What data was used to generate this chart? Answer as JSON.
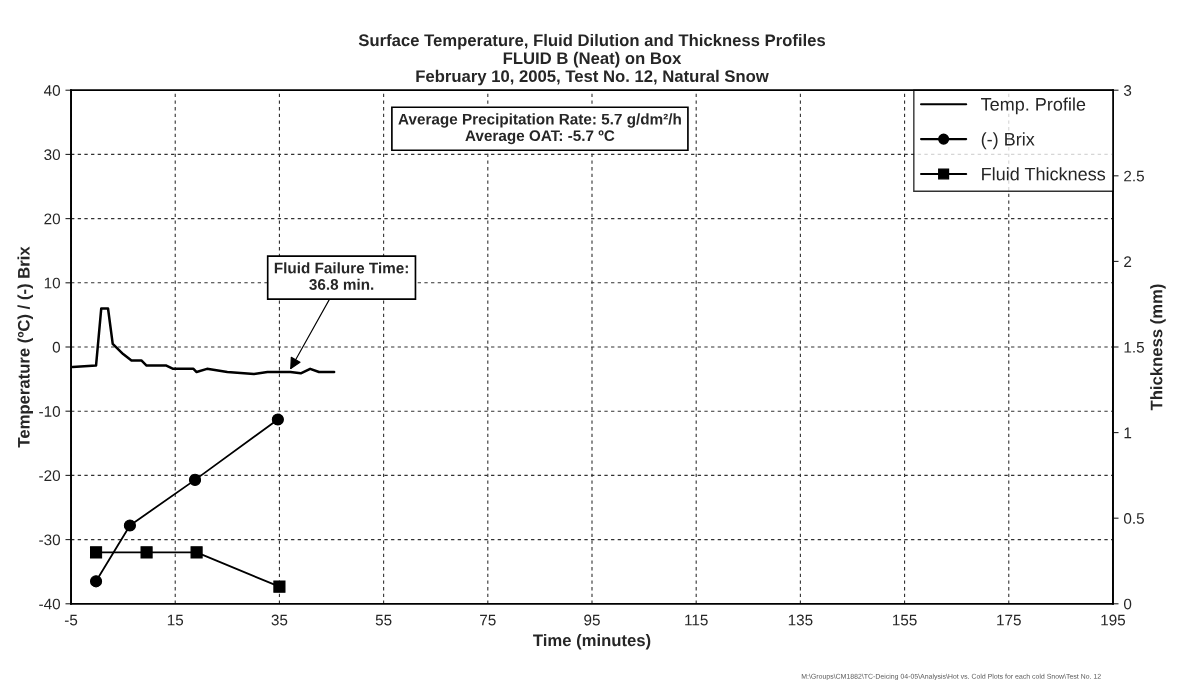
{
  "chart_data": {
    "type": "line",
    "title": "Surface Temperature, Fluid Dilution and Thickness Profiles\nFLUID B (Neat) on Box\nFebruary 10, 2005, Test No. 12, Natural Snow",
    "xlabel": "Time (minutes)",
    "ylabel": "Temperature (ºC) / (-) Brix",
    "y2label": "Thickness (mm)",
    "xlim": [
      -5,
      195
    ],
    "xticks": [
      -5,
      15,
      35,
      55,
      75,
      95,
      115,
      135,
      155,
      175,
      195
    ],
    "ylim": [
      -40,
      40
    ],
    "yticks": [
      -40,
      -30,
      -20,
      -10,
      0,
      10,
      20,
      30,
      40
    ],
    "y2lim": [
      0,
      3
    ],
    "y2ticks": [
      0,
      0.5,
      1,
      1.5,
      2,
      2.5,
      3
    ],
    "grid": true,
    "legend": "top right",
    "series": [
      {
        "name": "Temp. Profile",
        "color": "#000000",
        "marker": "none",
        "x": [
          -4.7,
          -0.2,
          0.8,
          2.1,
          3.0,
          5.0,
          6.6,
          8.5,
          9.5,
          13.3,
          14.6,
          18.5,
          19.1,
          21.1,
          25.0,
          30.1,
          32.7,
          37.1,
          39.1,
          40.9,
          42.6,
          45.5
        ],
        "values": [
          -3.1,
          -2.9,
          6.0,
          6.0,
          0.5,
          -1.1,
          -2.1,
          -2.1,
          -2.9,
          -2.9,
          -3.4,
          -3.4,
          -3.9,
          -3.4,
          -3.9,
          -4.2,
          -3.9,
          -3.9,
          -4.1,
          -3.4,
          -3.9,
          -3.9
        ]
      },
      {
        "name": "(-) Brix",
        "color": "#000000",
        "marker": "circle",
        "x": [
          -0.2,
          6.3,
          18.8,
          34.7
        ],
        "values": [
          -36.5,
          -27.8,
          -20.7,
          -11.3
        ]
      },
      {
        "name": "Fluid Thickness",
        "color": "#000000",
        "marker": "square",
        "axis": "y2",
        "x": [
          -0.2,
          9.5,
          19.1,
          35
        ],
        "values": [
          0.3,
          0.3,
          0.3,
          0.1
        ]
      }
    ],
    "annotations": [
      "Average Precipitation Rate: 5.7 g/dm²/h\nAverage OAT: -5.7 ºC",
      {
        "text": "Fluid Failure Time:\n36.8 min.",
        "x": 36.8,
        "y": -3.9
      },
      "M:\\Groups\\CM1882\\TC-Deicing 04-05\\Analysis\\Hot vs. Cold Plots for each cold Snow\\Test No. 12"
    ]
  }
}
